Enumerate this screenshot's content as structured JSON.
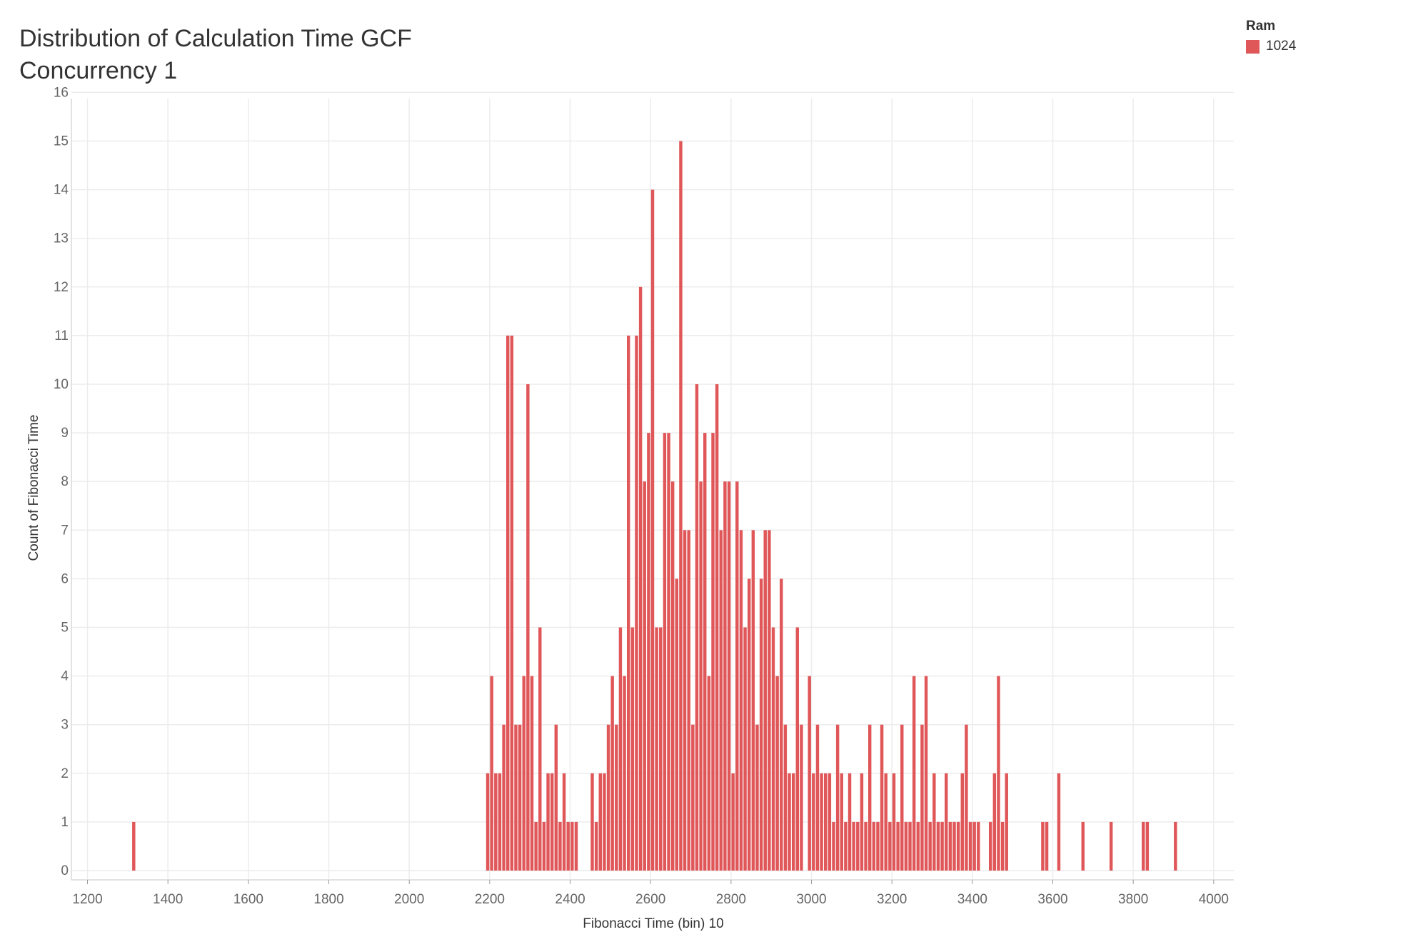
{
  "chart_data": {
    "type": "bar",
    "title_line1": "Distribution of Calculation Time GCF",
    "title_line2": "Concurrency 1",
    "xlabel": "Fibonacci Time (bin) 10",
    "ylabel": "Count of Fibonacci Time",
    "xlim": [
      1160,
      4050
    ],
    "ylim": [
      0,
      16
    ],
    "bin_width": 10,
    "x_ticks": [
      "1200",
      "1400",
      "1600",
      "1800",
      "2000",
      "2200",
      "2400",
      "2600",
      "2800",
      "3000",
      "3200",
      "3400",
      "3600",
      "3800",
      "4000"
    ],
    "y_ticks": [
      "0",
      "1",
      "2",
      "3",
      "4",
      "5",
      "6",
      "7",
      "8",
      "9",
      "10",
      "11",
      "12",
      "13",
      "14",
      "15",
      "16"
    ],
    "legend": {
      "title": "Ram",
      "items": [
        {
          "label": "1024",
          "color": "#e05759"
        }
      ]
    },
    "series": [
      {
        "name": "1024",
        "color": "#e05759",
        "bins": [
          [
            1310,
            1
          ],
          [
            2190,
            2
          ],
          [
            2200,
            4
          ],
          [
            2210,
            2
          ],
          [
            2220,
            2
          ],
          [
            2230,
            3
          ],
          [
            2240,
            11
          ],
          [
            2250,
            11
          ],
          [
            2260,
            3
          ],
          [
            2270,
            3
          ],
          [
            2280,
            4
          ],
          [
            2290,
            10
          ],
          [
            2300,
            4
          ],
          [
            2310,
            1
          ],
          [
            2320,
            5
          ],
          [
            2330,
            1
          ],
          [
            2340,
            2
          ],
          [
            2350,
            2
          ],
          [
            2360,
            3
          ],
          [
            2370,
            1
          ],
          [
            2380,
            2
          ],
          [
            2390,
            1
          ],
          [
            2400,
            1
          ],
          [
            2410,
            1
          ],
          [
            2450,
            2
          ],
          [
            2460,
            1
          ],
          [
            2470,
            2
          ],
          [
            2480,
            2
          ],
          [
            2490,
            3
          ],
          [
            2500,
            4
          ],
          [
            2510,
            3
          ],
          [
            2520,
            5
          ],
          [
            2530,
            4
          ],
          [
            2540,
            11
          ],
          [
            2550,
            5
          ],
          [
            2560,
            11
          ],
          [
            2570,
            12
          ],
          [
            2580,
            8
          ],
          [
            2590,
            9
          ],
          [
            2600,
            14
          ],
          [
            2610,
            5
          ],
          [
            2620,
            5
          ],
          [
            2630,
            9
          ],
          [
            2640,
            9
          ],
          [
            2650,
            8
          ],
          [
            2660,
            6
          ],
          [
            2670,
            15
          ],
          [
            2680,
            7
          ],
          [
            2690,
            7
          ],
          [
            2700,
            3
          ],
          [
            2710,
            10
          ],
          [
            2720,
            8
          ],
          [
            2730,
            9
          ],
          [
            2740,
            4
          ],
          [
            2750,
            9
          ],
          [
            2760,
            10
          ],
          [
            2770,
            7
          ],
          [
            2780,
            8
          ],
          [
            2790,
            8
          ],
          [
            2800,
            2
          ],
          [
            2810,
            8
          ],
          [
            2820,
            7
          ],
          [
            2830,
            5
          ],
          [
            2840,
            6
          ],
          [
            2850,
            7
          ],
          [
            2860,
            3
          ],
          [
            2870,
            6
          ],
          [
            2880,
            7
          ],
          [
            2890,
            7
          ],
          [
            2900,
            5
          ],
          [
            2910,
            4
          ],
          [
            2920,
            6
          ],
          [
            2930,
            3
          ],
          [
            2940,
            2
          ],
          [
            2950,
            2
          ],
          [
            2960,
            5
          ],
          [
            2970,
            3
          ],
          [
            2990,
            4
          ],
          [
            3000,
            2
          ],
          [
            3010,
            3
          ],
          [
            3020,
            2
          ],
          [
            3030,
            2
          ],
          [
            3040,
            2
          ],
          [
            3050,
            1
          ],
          [
            3060,
            3
          ],
          [
            3070,
            2
          ],
          [
            3080,
            1
          ],
          [
            3090,
            2
          ],
          [
            3100,
            1
          ],
          [
            3110,
            1
          ],
          [
            3120,
            2
          ],
          [
            3130,
            1
          ],
          [
            3140,
            3
          ],
          [
            3150,
            1
          ],
          [
            3160,
            1
          ],
          [
            3170,
            3
          ],
          [
            3180,
            2
          ],
          [
            3190,
            1
          ],
          [
            3200,
            2
          ],
          [
            3210,
            1
          ],
          [
            3220,
            3
          ],
          [
            3230,
            1
          ],
          [
            3240,
            1
          ],
          [
            3250,
            4
          ],
          [
            3260,
            1
          ],
          [
            3270,
            3
          ],
          [
            3280,
            4
          ],
          [
            3290,
            1
          ],
          [
            3300,
            2
          ],
          [
            3310,
            1
          ],
          [
            3320,
            1
          ],
          [
            3330,
            2
          ],
          [
            3340,
            1
          ],
          [
            3350,
            1
          ],
          [
            3360,
            1
          ],
          [
            3370,
            2
          ],
          [
            3380,
            3
          ],
          [
            3390,
            1
          ],
          [
            3400,
            1
          ],
          [
            3410,
            1
          ],
          [
            3440,
            1
          ],
          [
            3450,
            2
          ],
          [
            3460,
            4
          ],
          [
            3470,
            1
          ],
          [
            3480,
            2
          ],
          [
            3570,
            1
          ],
          [
            3580,
            1
          ],
          [
            3610,
            2
          ],
          [
            3670,
            1
          ],
          [
            3740,
            1
          ],
          [
            3820,
            1
          ],
          [
            3830,
            1
          ],
          [
            3900,
            1
          ]
        ]
      }
    ]
  }
}
